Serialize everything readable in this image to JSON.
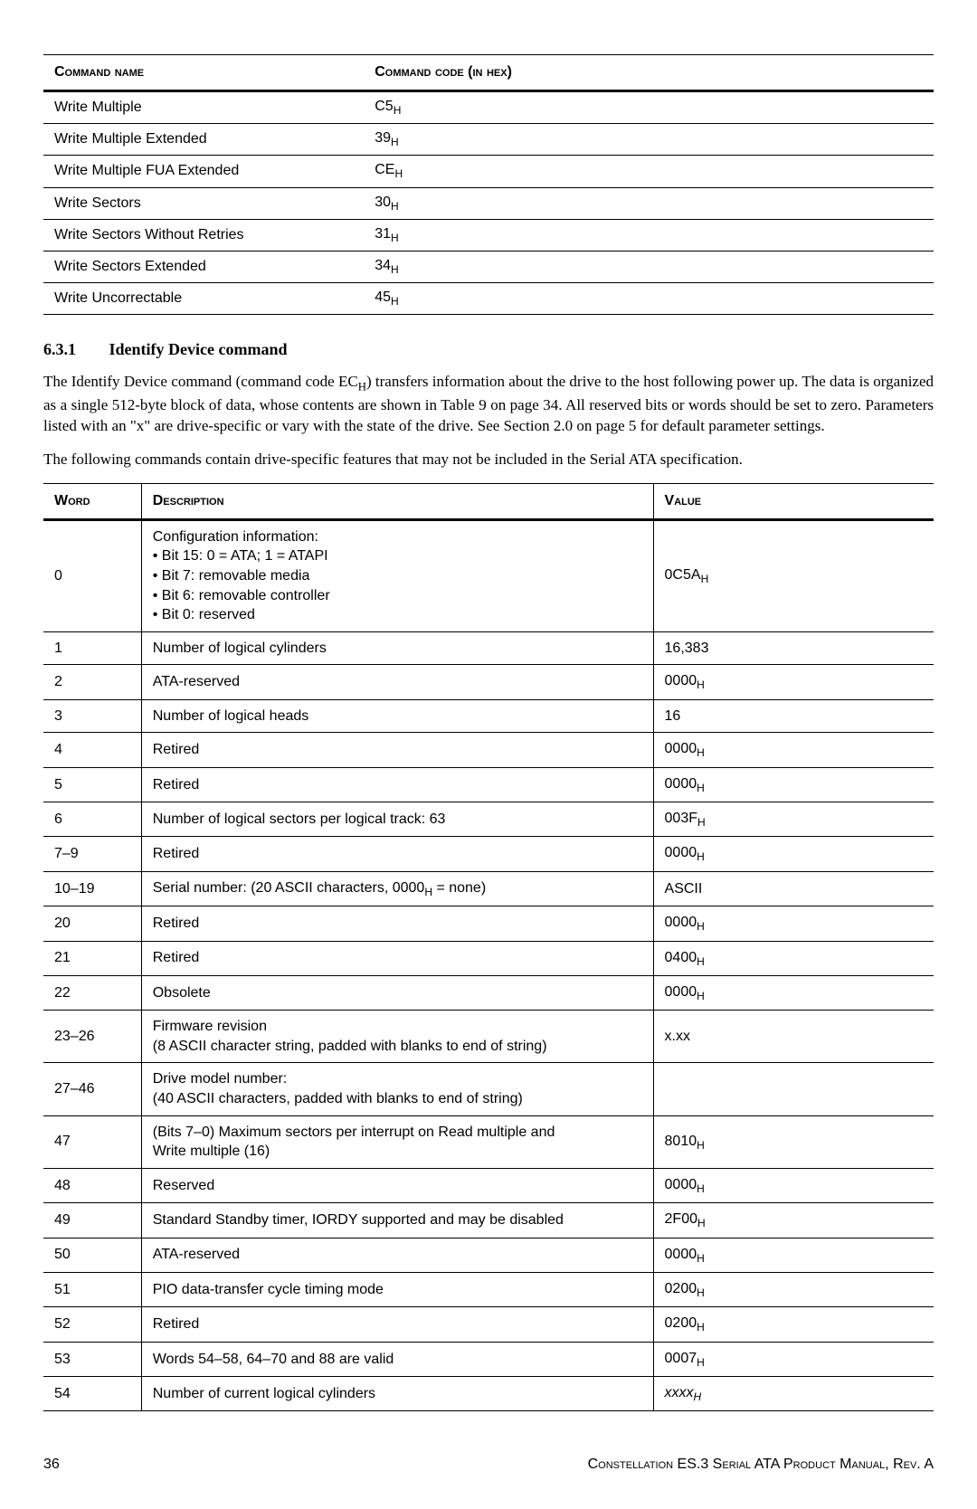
{
  "cmd_table": {
    "headers": {
      "name": "Command name",
      "code": "Command code (in hex)"
    },
    "rows": [
      {
        "name": "Write Multiple",
        "code": "C5",
        "sub": "H"
      },
      {
        "name": "Write Multiple Extended",
        "code": "39",
        "sub": "H"
      },
      {
        "name": "Write Multiple FUA Extended",
        "code": "CE",
        "sub": "H"
      },
      {
        "name": "Write Sectors",
        "code": "30",
        "sub": "H"
      },
      {
        "name": "Write Sectors Without Retries",
        "code": "31",
        "sub": "H"
      },
      {
        "name": "Write Sectors Extended",
        "code": "34",
        "sub": "H"
      },
      {
        "name": "Write Uncorrectable",
        "code": "45",
        "sub": "H"
      }
    ]
  },
  "section": {
    "number": "6.3.1",
    "title": "Identify Device command"
  },
  "para1_pre": "The Identify Device command (command code EC",
  "para1_sub": "H",
  "para1_post": ") transfers information about the drive to the host following power up. The data is organized as a single 512-byte block of data, whose contents are shown in Table 9 on page 34. All reserved bits or words should be set to zero. Parameters listed with an \"x\" are drive-specific or vary with the state of the drive. See Section 2.0 on page 5 for default parameter settings.",
  "para2": "The following commands contain drive-specific features that may not be included in the Serial ATA specification.",
  "word_table": {
    "headers": {
      "word": "Word",
      "desc": "Description",
      "value": "Value"
    },
    "rows": [
      {
        "word": "0",
        "desc_lines": [
          "Configuration information:",
          "• Bit 15: 0 = ATA; 1 = ATAPI",
          "• Bit 7: removable media",
          "• Bit 6: removable controller",
          "• Bit 0: reserved"
        ],
        "val": "0C5A",
        "sub": "H"
      },
      {
        "word": "1",
        "desc": "Number of logical cylinders",
        "val": "16,383",
        "sub": ""
      },
      {
        "word": "2",
        "desc": "ATA-reserved",
        "val": "0000",
        "sub": "H"
      },
      {
        "word": "3",
        "desc": "Number of logical heads",
        "val": "16",
        "sub": ""
      },
      {
        "word": "4",
        "desc": "Retired",
        "val": "0000",
        "sub": "H"
      },
      {
        "word": "5",
        "desc": "Retired",
        "val": "0000",
        "sub": "H"
      },
      {
        "word": "6",
        "desc": "Number of logical sectors per logical track: 63",
        "val": "003F",
        "sub": "H"
      },
      {
        "word": "7–9",
        "desc": "Retired",
        "val": "0000",
        "sub": "H"
      },
      {
        "word": "10–19",
        "desc_pre": "Serial number: (20 ASCII characters, 0000",
        "desc_sub": "H",
        "desc_post": " = none)",
        "val": "ASCII",
        "sub": ""
      },
      {
        "word": "20",
        "desc": "Retired",
        "val": "0000",
        "sub": "H"
      },
      {
        "word": "21",
        "desc": "Retired",
        "val": "0400",
        "sub": "H"
      },
      {
        "word": "22",
        "desc": "Obsolete",
        "val": "0000",
        "sub": "H"
      },
      {
        "word": "23–26",
        "desc_lines": [
          "Firmware revision",
          "(8 ASCII character string, padded with blanks to end of string)"
        ],
        "val": "x.xx",
        "sub": ""
      },
      {
        "word": "27–46",
        "desc_lines": [
          "Drive model number:",
          "(40 ASCII characters, padded with blanks to end of string)"
        ],
        "val": "",
        "sub": ""
      },
      {
        "word": "47",
        "desc_lines": [
          "(Bits 7–0) Maximum sectors per interrupt on Read multiple and",
          "Write multiple (16)"
        ],
        "val": "8010",
        "sub": "H"
      },
      {
        "word": "48",
        "desc": "Reserved",
        "val": "0000",
        "sub": "H"
      },
      {
        "word": "49",
        "desc": "Standard Standby timer, IORDY supported and may be disabled",
        "val": "2F00",
        "sub": "H"
      },
      {
        "word": "50",
        "desc": "ATA-reserved",
        "val": "0000",
        "sub": "H"
      },
      {
        "word": "51",
        "desc": "PIO data-transfer cycle  timing mode",
        "val": "0200",
        "sub": "H"
      },
      {
        "word": "52",
        "desc": "Retired",
        "val": "0200",
        "sub": "H"
      },
      {
        "word": "53",
        "desc": "Words 54–58, 64–70 and 88 are valid",
        "val": "0007",
        "sub": "H"
      },
      {
        "word": "54",
        "desc": "Number of current logical  cylinders",
        "val_italic": "xxxx",
        "sub": "H"
      }
    ]
  },
  "footer": {
    "page": "36",
    "title": "Constellation ES.3 Serial ATA Product Manual, Rev. A"
  }
}
